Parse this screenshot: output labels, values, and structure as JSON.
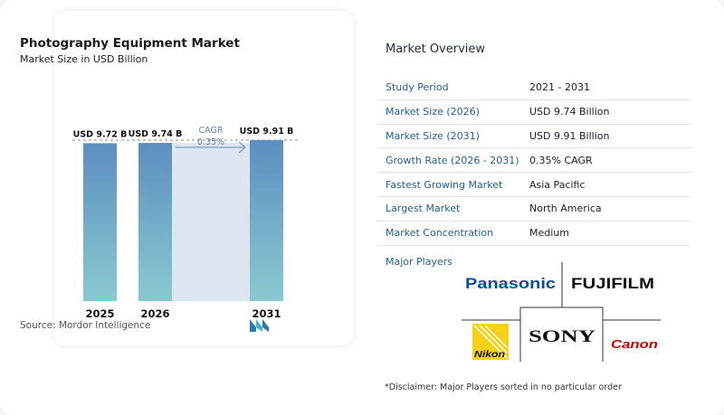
{
  "chart_data": {
    "type": "bar",
    "title": "Photography Equipment Market",
    "subtitle": "Market Size in USD Billion",
    "categories": [
      "2025",
      "2026",
      "2031"
    ],
    "values": [
      9.72,
      9.74,
      9.91
    ],
    "data_labels": [
      "USD 9.72 B",
      "USD 9.74 B",
      "USD 9.91 B"
    ],
    "annotation": {
      "label": "CAGR",
      "value": "0.35%"
    },
    "xlabel": "",
    "ylabel": "",
    "grid": false,
    "bar_colors": [
      "#5b8fbf",
      "#8ac9d1"
    ]
  },
  "source": "Source:   Mordor Intelligence",
  "overview": {
    "title": "Market Overview",
    "rows": [
      {
        "label": "Study Period",
        "value": "2021 - 2031"
      },
      {
        "label": "Market Size (2026)",
        "value": "USD 9.74 Billion"
      },
      {
        "label": "Market Size (2031)",
        "value": "USD 9.91 Billion"
      },
      {
        "label": "Growth Rate (2026 - 2031)",
        "value": "0.35% CAGR"
      },
      {
        "label": "Fastest Growing Market",
        "value": "Asia Pacific"
      },
      {
        "label": "Largest Market",
        "value": "North America"
      },
      {
        "label": "Market Concentration",
        "value": "Medium"
      }
    ]
  },
  "players": {
    "title": "Major Players",
    "brands": [
      "Panasonic",
      "FUJIFILM",
      "Nikon",
      "SONY",
      "Canon"
    ]
  },
  "disclaimer": "*Disclaimer: Major Players sorted in no particular order",
  "colors": {
    "accent": "#1f5f97",
    "panasonic": "#0a4da2",
    "canon": "#cc0000",
    "nikon_yellow": "#f7d117"
  }
}
